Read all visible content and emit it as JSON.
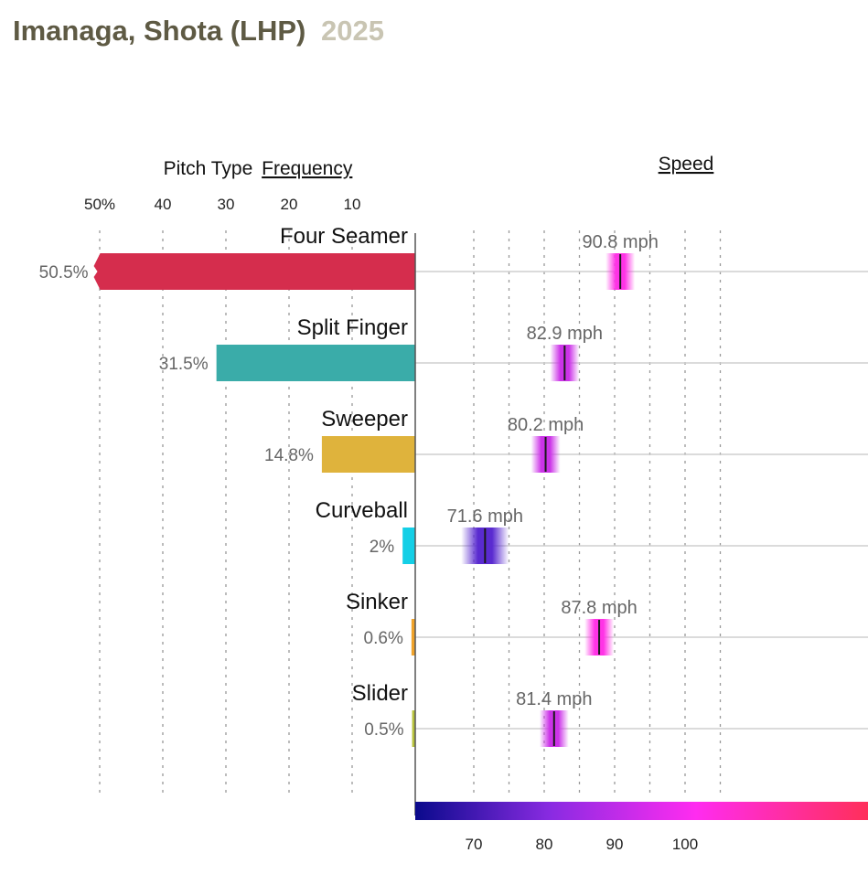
{
  "header": {
    "player": "Imanaga, Shota (LHP)",
    "year": "2025"
  },
  "chart_data": {
    "type": "bar",
    "frequency_panel": {
      "title_prefix": "Pitch Type",
      "title_link": "Frequency",
      "ticks": [
        "50%",
        "40",
        "30",
        "20",
        "10"
      ],
      "tick_values": [
        50,
        40,
        30,
        20,
        10
      ],
      "xlim": [
        0,
        50
      ]
    },
    "speed_panel": {
      "title": "Speed",
      "ticks": [
        "70",
        "80",
        "90",
        "100"
      ],
      "tick_values": [
        70,
        80,
        90,
        100
      ],
      "unit": "mph",
      "gradient_colors": [
        "#0a0a8c",
        "#8a2be2",
        "#ff2cf0",
        "#ff2f5a"
      ]
    },
    "categories": [
      "Four Seamer",
      "Split Finger",
      "Sweeper",
      "Curveball",
      "Sinker",
      "Slider"
    ],
    "series": [
      {
        "name": "Frequency",
        "values": [
          50.5,
          31.5,
          14.8,
          2,
          0.6,
          0.5
        ],
        "labels": [
          "50.5%",
          "31.5%",
          "14.8%",
          "2%",
          "0.6%",
          "0.5%"
        ]
      },
      {
        "name": "Speed",
        "values": [
          90.8,
          82.9,
          80.2,
          71.6,
          87.8,
          81.4
        ],
        "labels": [
          "90.8 mph",
          "82.9 mph",
          "80.2 mph",
          "71.6 mph",
          "87.8 mph",
          "81.4 mph"
        ]
      }
    ],
    "colors": [
      "#d52d4d",
      "#3aaca9",
      "#dfb33c",
      "#14cfe6",
      "#f0a32a",
      "#b8c33d"
    ]
  }
}
